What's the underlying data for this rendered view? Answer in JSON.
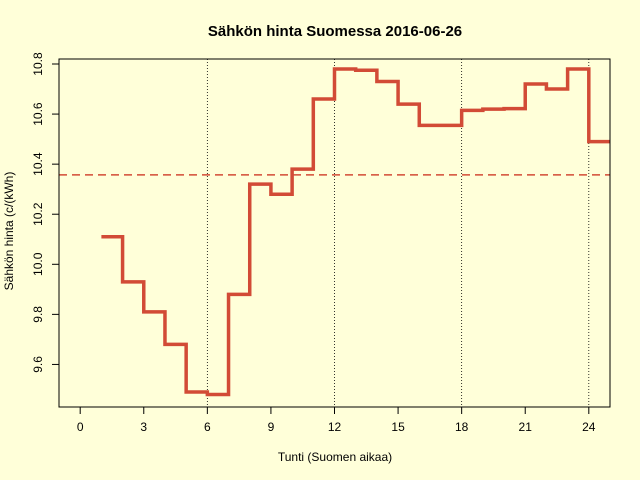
{
  "chart_data": {
    "type": "line",
    "title": "Sähkön hinta Suomessa 2016-06-26",
    "xlabel": "Tunti (Suomen aikaa)",
    "ylabel": "Sähkön hinta (c/(kWh)",
    "xlim": [
      -1,
      25
    ],
    "ylim": [
      9.43,
      10.82
    ],
    "x_ticks": [
      0,
      3,
      6,
      9,
      12,
      15,
      18,
      21,
      24
    ],
    "y_ticks": [
      9.6,
      9.8,
      10.0,
      10.2,
      10.4,
      10.6,
      10.8
    ],
    "y_tick_labels": [
      "9.6",
      "9.8",
      "10.0",
      "10.2",
      "10.4",
      "10.6",
      "10.8"
    ],
    "vertical_reference_lines": [
      6,
      12,
      18,
      24
    ],
    "mean_line": 10.357,
    "series": [
      {
        "style": "step",
        "color": "#d24b36",
        "x": [
          1,
          2,
          3,
          4,
          5,
          6,
          7,
          8,
          9,
          10,
          11,
          12,
          13,
          14,
          15,
          16,
          17,
          18,
          19,
          20,
          21,
          22,
          23,
          24
        ],
        "y": [
          10.11,
          9.93,
          9.81,
          9.68,
          9.49,
          9.48,
          9.88,
          10.32,
          10.28,
          10.38,
          10.66,
          10.78,
          10.775,
          10.73,
          10.64,
          10.555,
          10.555,
          10.615,
          10.62,
          10.622,
          10.72,
          10.7,
          10.78,
          10.49
        ]
      }
    ]
  }
}
